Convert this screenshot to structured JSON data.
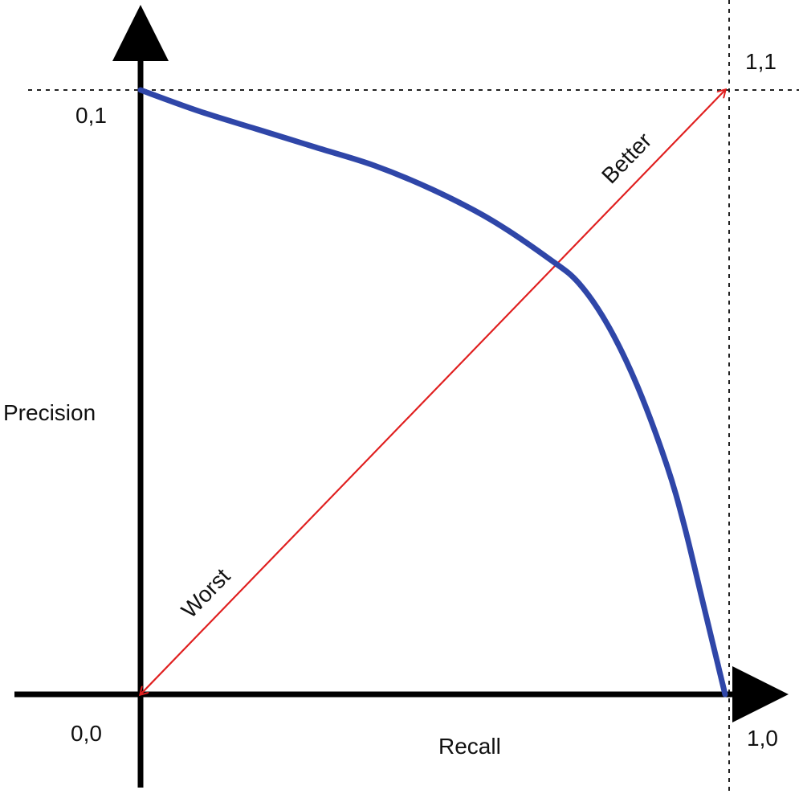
{
  "chart_data": {
    "type": "line",
    "xlabel": "Recall",
    "ylabel": "Precision",
    "xlim": [
      0,
      1
    ],
    "ylim": [
      0,
      1
    ],
    "grid": false,
    "corner_labels": {
      "origin": "0,0",
      "top_left": "0,1",
      "top_right": "1,1",
      "bottom_right": "1,0"
    },
    "series": [
      {
        "color": "#2f46a8",
        "x": [
          0.0,
          0.1,
          0.2,
          0.3,
          0.4,
          0.5,
          0.6,
          0.7,
          0.75,
          0.8,
          0.85,
          0.9,
          0.93,
          0.96,
          0.98,
          0.99,
          1.0
        ],
        "y": [
          1.0,
          0.965,
          0.935,
          0.905,
          0.875,
          0.835,
          0.785,
          0.72,
          0.68,
          0.61,
          0.51,
          0.38,
          0.28,
          0.16,
          0.08,
          0.04,
          0.0
        ]
      }
    ],
    "annotations": [
      {
        "text": "Better",
        "color": "#e02020",
        "from": [
          0,
          0
        ],
        "to": [
          1,
          1
        ]
      },
      {
        "text": "Worst",
        "color": "#e02020",
        "from": [
          1,
          1
        ],
        "to": [
          0,
          0
        ]
      }
    ]
  }
}
